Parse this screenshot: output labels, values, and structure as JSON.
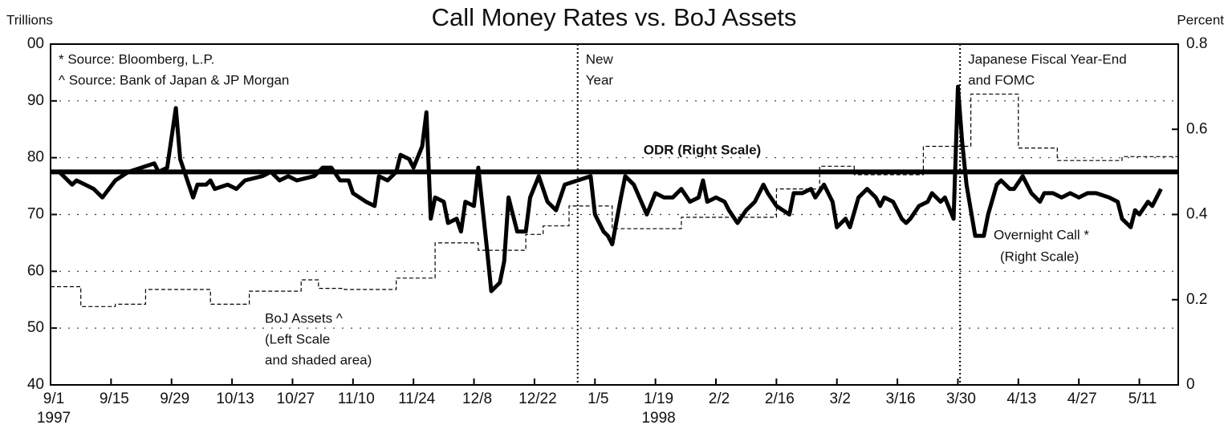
{
  "chart_data": {
    "type": "line",
    "title": "Call Money Rates vs. BoJ Assets",
    "y_label": "Trillions",
    "y2_label": "Percent",
    "xlim": [
      0,
      261
    ],
    "xticks": [
      {
        "value": 0,
        "label": "9/1"
      },
      {
        "value": 14,
        "label": "9/15"
      },
      {
        "value": 28,
        "label": "9/29"
      },
      {
        "value": 42,
        "label": "10/13"
      },
      {
        "value": 56,
        "label": "10/27"
      },
      {
        "value": 70,
        "label": "11/10"
      },
      {
        "value": 84,
        "label": "11/24"
      },
      {
        "value": 98,
        "label": "12/8"
      },
      {
        "value": 112,
        "label": "12/22"
      },
      {
        "value": 126,
        "label": "1/5"
      },
      {
        "value": 140,
        "label": "1/19"
      },
      {
        "value": 154,
        "label": "2/2"
      },
      {
        "value": 168,
        "label": "2/16"
      },
      {
        "value": 182,
        "label": "3/2"
      },
      {
        "value": 196,
        "label": "3/16"
      },
      {
        "value": 210,
        "label": "3/30"
      },
      {
        "value": 224,
        "label": "4/13"
      },
      {
        "value": 238,
        "label": "4/27"
      },
      {
        "value": 252,
        "label": "5/11"
      }
    ],
    "years": [
      {
        "value": 0,
        "label": "1997"
      },
      {
        "value": 140,
        "label": "1998"
      }
    ],
    "ylim": [
      40,
      100
    ],
    "yticks": [
      40,
      50,
      60,
      70,
      80,
      90,
      {
        "value": 100,
        "label": "00"
      }
    ],
    "y2lim": [
      0,
      0.8
    ],
    "y2ticks": [
      0,
      0.2,
      0.4,
      0.6,
      0.8
    ],
    "grid": true,
    "notes": [
      "* Source: Bloomberg, L.P.",
      "^ Source: Bank of Japan & JP Morgan"
    ],
    "events": [
      {
        "x": 122,
        "label": [
          "New",
          "Year"
        ]
      },
      {
        "x": 210.5,
        "label": [
          "Japanese Fiscal Year-End",
          "and FOMC"
        ]
      }
    ],
    "series": [
      {
        "name": "Overnight Call *",
        "name_lines": [
          "(Right Scale)"
        ],
        "axis": "y2",
        "color": "#000000",
        "style": "solid",
        "x": [
          0,
          2,
          5,
          6,
          8,
          10,
          12,
          15,
          18,
          21,
          24,
          25,
          27,
          29,
          30,
          33,
          34,
          36,
          37,
          38,
          41,
          43,
          45,
          49,
          51,
          53,
          55,
          57,
          61,
          63,
          65,
          67,
          69,
          70,
          73,
          75,
          76,
          78,
          80,
          81,
          83,
          84,
          86,
          87,
          88,
          89,
          91,
          92,
          94,
          95,
          96,
          98,
          99,
          101,
          102,
          104,
          105,
          106,
          108,
          110,
          111,
          113,
          115,
          117,
          119,
          122,
          125,
          126,
          128,
          129,
          130,
          132,
          133,
          135,
          138,
          140,
          142,
          144,
          146,
          148,
          150,
          151,
          152,
          154,
          156,
          157,
          159,
          161,
          163,
          165,
          166,
          168,
          171,
          172,
          174,
          176,
          177,
          179,
          181,
          182,
          184,
          185,
          187,
          189,
          191,
          192,
          193,
          195,
          197,
          198,
          199,
          201,
          203,
          204,
          206,
          207,
          209,
          210,
          211,
          212,
          213,
          214,
          216,
          217,
          219,
          220,
          222,
          223,
          225,
          227,
          229,
          230,
          232,
          234,
          236,
          238,
          240,
          242,
          245,
          247,
          248,
          250,
          251,
          252,
          254,
          255,
          257
        ],
        "values": [
          0.5,
          0.5,
          0.47,
          0.48,
          0.47,
          0.46,
          0.44,
          0.48,
          0.5,
          0.51,
          0.52,
          0.5,
          0.51,
          0.65,
          0.53,
          0.44,
          0.47,
          0.47,
          0.48,
          0.46,
          0.47,
          0.46,
          0.48,
          0.49,
          0.5,
          0.48,
          0.49,
          0.48,
          0.49,
          0.51,
          0.51,
          0.48,
          0.48,
          0.45,
          0.43,
          0.42,
          0.49,
          0.48,
          0.5,
          0.54,
          0.53,
          0.51,
          0.56,
          0.64,
          0.39,
          0.44,
          0.43,
          0.38,
          0.39,
          0.36,
          0.43,
          0.42,
          0.51,
          0.32,
          0.22,
          0.24,
          0.29,
          0.44,
          0.36,
          0.36,
          0.44,
          0.49,
          0.43,
          0.41,
          0.47,
          0.48,
          0.49,
          0.4,
          0.36,
          0.35,
          0.33,
          0.44,
          0.49,
          0.47,
          0.4,
          0.45,
          0.44,
          0.44,
          0.46,
          0.43,
          0.44,
          0.48,
          0.43,
          0.44,
          0.43,
          0.41,
          0.38,
          0.41,
          0.43,
          0.47,
          0.45,
          0.42,
          0.4,
          0.45,
          0.45,
          0.46,
          0.44,
          0.47,
          0.43,
          0.37,
          0.39,
          0.37,
          0.44,
          0.46,
          0.44,
          0.42,
          0.44,
          0.43,
          0.39,
          0.38,
          0.39,
          0.42,
          0.43,
          0.45,
          0.43,
          0.44,
          0.39,
          0.7,
          0.57,
          0.47,
          0.41,
          0.35,
          0.35,
          0.4,
          0.47,
          0.48,
          0.46,
          0.46,
          0.49,
          0.45,
          0.43,
          0.45,
          0.45,
          0.44,
          0.45,
          0.44,
          0.45,
          0.45,
          0.44,
          0.43,
          0.39,
          0.37,
          0.41,
          0.4,
          0.43,
          0.42,
          0.46
        ]
      },
      {
        "name": "ODR (Right Scale)",
        "axis": "y2",
        "color": "#000000",
        "style": "thick",
        "x": [
          0,
          261
        ],
        "values": [
          0.5,
          0.5
        ]
      },
      {
        "name": "BoJ Assets ^",
        "name_lines": [
          "(Left Scale",
          "and shaded area)"
        ],
        "axis": "y",
        "color": "#000000",
        "style": "dashed",
        "step": true,
        "x": [
          0,
          7,
          15,
          22,
          37,
          46,
          58,
          62,
          68,
          80,
          89,
          99,
          110,
          114,
          120,
          130,
          146,
          168,
          178,
          186,
          202,
          213,
          224,
          233,
          248,
          261
        ],
        "values": [
          57.3,
          53.8,
          54.2,
          56.8,
          54.2,
          56.5,
          58.5,
          57,
          56.8,
          58.8,
          65,
          63.7,
          66.5,
          68,
          71.5,
          67.5,
          69.5,
          74.5,
          78.5,
          77,
          82,
          91.2,
          81.7,
          79.5,
          80.2,
          80.2
        ]
      }
    ]
  }
}
